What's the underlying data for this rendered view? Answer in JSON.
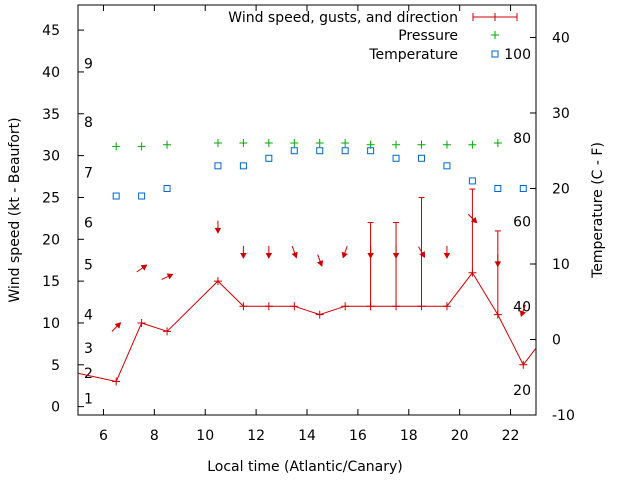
{
  "chart_data": {
    "type": "line",
    "title": "",
    "xlabel": "Local time (Atlantic/Canary)",
    "ylabel": "Wind speed (kt - Beaufort)",
    "y2label": "Temperature (C - F)",
    "xlim": [
      5,
      23
    ],
    "ylim": [
      -1,
      48
    ],
    "y2lim": [
      -10,
      44.3
    ],
    "grid": false,
    "legend_position": "top-right",
    "x_ticks": [
      6,
      8,
      10,
      12,
      14,
      16,
      18,
      20,
      22
    ],
    "y_ticks": [
      0,
      5,
      10,
      15,
      20,
      25,
      30,
      35,
      40,
      45
    ],
    "y2_ticks": [
      -10,
      0,
      10,
      20,
      30,
      40
    ],
    "beaufort_labels": [
      {
        "label": "1",
        "y": 1
      },
      {
        "label": "2",
        "y": 4
      },
      {
        "label": "3",
        "y": 7
      },
      {
        "label": "4",
        "y": 11
      },
      {
        "label": "5",
        "y": 17
      },
      {
        "label": "6",
        "y": 22
      },
      {
        "label": "7",
        "y": 28
      },
      {
        "label": "8",
        "y": 34
      },
      {
        "label": "9",
        "y": 41
      }
    ],
    "fahrenheit_labels": [
      {
        "label": "20",
        "t": -6.7
      },
      {
        "label": "40",
        "t": 4.4
      },
      {
        "label": "60",
        "t": 15.6
      },
      {
        "label": "80",
        "t": 26.7
      },
      {
        "label": "100",
        "t": 37.8
      }
    ],
    "series": [
      {
        "name": "Wind speed, gusts, and direction",
        "color": "#cc0000",
        "x": [
          5,
          6.5,
          7.5,
          8.5,
          10.5,
          11.5,
          12.5,
          13.5,
          14.5,
          15.5,
          16.5,
          17.5,
          18.5,
          19.5,
          20.5,
          21.5,
          22.5,
          23
        ],
        "values": [
          4,
          3,
          10,
          9,
          15,
          12,
          12,
          12,
          11,
          12,
          12,
          12,
          12,
          12,
          16,
          11,
          5,
          7
        ],
        "gusts": [
          null,
          null,
          null,
          null,
          null,
          null,
          null,
          null,
          null,
          null,
          22,
          22,
          25,
          null,
          26,
          21,
          null,
          null
        ],
        "direction_deg": [
          null,
          225,
          235,
          245,
          0,
          0,
          0,
          340,
          340,
          20,
          0,
          0,
          330,
          0,
          315,
          0,
          20,
          null
        ]
      },
      {
        "name": "Pressure",
        "color": "#00aa00",
        "x": [
          6.5,
          7.5,
          8.5,
          10.5,
          11.5,
          12.5,
          13.5,
          14.5,
          15.5,
          16.5,
          17.5,
          18.5,
          19.5,
          20.5,
          21.5
        ],
        "values": [
          31.1,
          31.1,
          31.3,
          31.5,
          31.5,
          31.5,
          31.5,
          31.5,
          31.5,
          31.3,
          31.3,
          31.3,
          31.3,
          31.3,
          31.5
        ]
      },
      {
        "name": "Temperature",
        "color": "#0066cc",
        "x": [
          6.5,
          7.5,
          8.5,
          10.5,
          11.5,
          12.5,
          13.5,
          14.5,
          15.5,
          16.5,
          17.5,
          18.5,
          19.5,
          20.5,
          21.5,
          22.5
        ],
        "values": [
          19,
          19,
          20,
          23,
          23,
          24,
          25,
          25,
          25,
          25,
          24,
          24,
          23,
          21,
          20,
          20
        ]
      }
    ]
  }
}
